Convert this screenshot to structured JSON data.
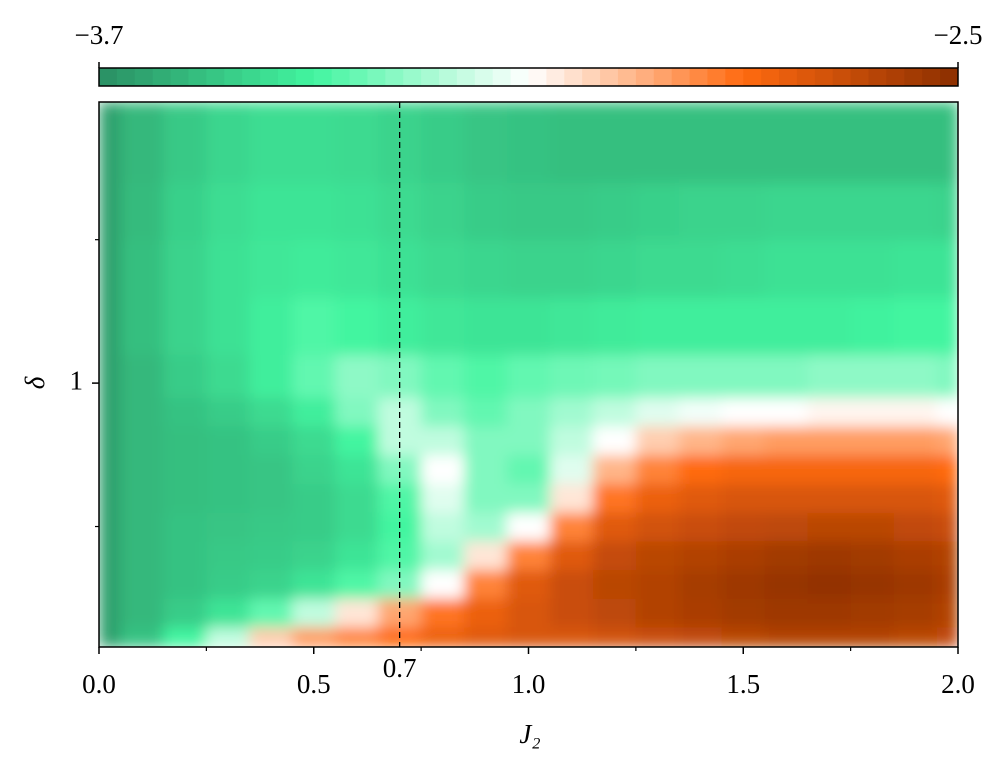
{
  "chart_data": {
    "type": "heatmap",
    "xlabel": "J₂",
    "ylabel": "δ",
    "xlim": [
      0,
      2
    ],
    "ylim": [
      0.08,
      1.98
    ],
    "xticks": [
      {
        "value": 0,
        "label": "0.0"
      },
      0.5,
      {
        "value": 1,
        "label": "1.0"
      },
      1.5,
      {
        "value": 2,
        "label": "2.0"
      }
    ],
    "xminorticks": [
      0.25,
      0.75,
      1.25,
      1.75
    ],
    "yticks": [
      1
    ],
    "yminorticks": [
      0.5,
      1.5
    ],
    "vline": 0.7,
    "clim": [
      {
        "value": -3.7,
        "label": "−3.7"
      },
      {
        "value": -2.5,
        "label": "−2.5"
      }
    ],
    "colorscale": [
      "#2a8f63",
      "#42f5a0",
      "#ffffff",
      "#ff6a10",
      "#8b2e00"
    ],
    "x": [
      0,
      0.1,
      0.2,
      0.3,
      0.4,
      0.5,
      0.6,
      0.7,
      0.8,
      0.9,
      1.0,
      1.1,
      1.2,
      1.3,
      1.4,
      1.5,
      1.6,
      1.7,
      1.8,
      1.9,
      2.0
    ],
    "y": [
      0.1,
      0.2,
      0.3,
      0.4,
      0.5,
      0.6,
      0.7,
      0.8,
      0.9,
      1.0,
      1.2,
      1.4,
      1.6,
      1.8
    ],
    "z": [
      [
        -3.65,
        -3.55,
        -3.4,
        -3.2,
        -3.0,
        -2.9,
        -2.85,
        -2.8,
        -2.75,
        -2.72,
        -2.7,
        -2.7,
        -2.68,
        -2.66,
        -2.64,
        -2.62,
        -2.6,
        -2.6,
        -2.6,
        -2.62,
        -2.64
      ],
      [
        -3.65,
        -3.58,
        -3.52,
        -3.45,
        -3.35,
        -3.2,
        -3.05,
        -2.92,
        -2.82,
        -2.75,
        -2.7,
        -2.66,
        -2.63,
        -2.6,
        -2.58,
        -2.56,
        -2.55,
        -2.55,
        -2.56,
        -2.57,
        -2.6
      ],
      [
        -3.65,
        -3.58,
        -3.55,
        -3.52,
        -3.5,
        -3.45,
        -3.38,
        -3.3,
        -3.1,
        -2.85,
        -2.72,
        -2.66,
        -2.62,
        -2.6,
        -2.57,
        -2.55,
        -2.53,
        -2.52,
        -2.53,
        -2.55,
        -2.58
      ],
      [
        -3.65,
        -3.58,
        -3.55,
        -3.53,
        -3.52,
        -3.5,
        -3.45,
        -3.38,
        -3.25,
        -3.05,
        -2.85,
        -2.72,
        -2.65,
        -2.62,
        -2.6,
        -2.58,
        -2.56,
        -2.55,
        -2.56,
        -2.58,
        -2.6
      ],
      [
        -3.65,
        -3.58,
        -3.55,
        -3.54,
        -3.53,
        -3.52,
        -3.48,
        -3.4,
        -3.2,
        -3.25,
        -3.1,
        -2.85,
        -2.72,
        -2.68,
        -2.66,
        -2.64,
        -2.63,
        -2.62,
        -2.62,
        -2.64,
        -2.66
      ],
      [
        -3.65,
        -3.58,
        -3.56,
        -3.55,
        -3.54,
        -3.52,
        -3.48,
        -3.38,
        -3.15,
        -3.3,
        -3.3,
        -3.05,
        -2.82,
        -2.75,
        -2.72,
        -2.7,
        -2.7,
        -2.7,
        -2.7,
        -2.7,
        -2.72
      ],
      [
        -3.65,
        -3.58,
        -3.56,
        -3.55,
        -3.54,
        -3.5,
        -3.45,
        -3.3,
        -3.1,
        -3.3,
        -3.35,
        -3.15,
        -2.95,
        -2.85,
        -2.8,
        -2.78,
        -2.78,
        -2.78,
        -2.78,
        -2.78,
        -2.8
      ],
      [
        -3.65,
        -3.58,
        -3.56,
        -3.55,
        -3.52,
        -3.48,
        -3.4,
        -3.2,
        -3.2,
        -3.3,
        -3.3,
        -3.2,
        -3.1,
        -3.0,
        -2.95,
        -2.92,
        -2.9,
        -2.9,
        -2.9,
        -2.9,
        -2.92
      ],
      [
        -3.65,
        -3.58,
        -3.55,
        -3.52,
        -3.48,
        -3.42,
        -3.3,
        -3.2,
        -3.3,
        -3.35,
        -3.3,
        -3.25,
        -3.2,
        -3.15,
        -3.12,
        -3.1,
        -3.1,
        -3.08,
        -3.08,
        -3.08,
        -3.1
      ],
      [
        -3.65,
        -3.58,
        -3.52,
        -3.48,
        -3.42,
        -3.35,
        -3.28,
        -3.3,
        -3.35,
        -3.38,
        -3.35,
        -3.33,
        -3.32,
        -3.3,
        -3.3,
        -3.3,
        -3.3,
        -3.28,
        -3.28,
        -3.28,
        -3.3
      ],
      [
        -3.65,
        -3.56,
        -3.5,
        -3.46,
        -3.42,
        -3.38,
        -3.4,
        -3.42,
        -3.44,
        -3.45,
        -3.45,
        -3.44,
        -3.43,
        -3.42,
        -3.42,
        -3.42,
        -3.42,
        -3.42,
        -3.41,
        -3.4,
        -3.4
      ],
      [
        -3.65,
        -3.56,
        -3.5,
        -3.46,
        -3.44,
        -3.43,
        -3.44,
        -3.46,
        -3.48,
        -3.49,
        -3.5,
        -3.5,
        -3.49,
        -3.48,
        -3.48,
        -3.47,
        -3.46,
        -3.46,
        -3.46,
        -3.45,
        -3.45
      ],
      [
        -3.65,
        -3.57,
        -3.51,
        -3.47,
        -3.45,
        -3.45,
        -3.46,
        -3.48,
        -3.5,
        -3.52,
        -3.53,
        -3.53,
        -3.52,
        -3.51,
        -3.5,
        -3.5,
        -3.49,
        -3.49,
        -3.49,
        -3.49,
        -3.5
      ],
      [
        -3.65,
        -3.58,
        -3.53,
        -3.49,
        -3.47,
        -3.47,
        -3.48,
        -3.5,
        -3.52,
        -3.54,
        -3.55,
        -3.56,
        -3.56,
        -3.56,
        -3.56,
        -3.56,
        -3.56,
        -3.56,
        -3.56,
        -3.56,
        -3.56
      ]
    ]
  }
}
